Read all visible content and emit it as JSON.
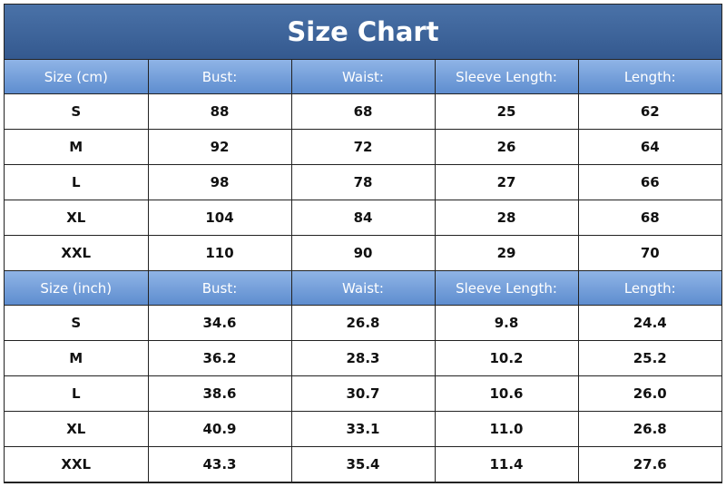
{
  "title": "Size Chart",
  "tables": [
    {
      "header": [
        "Size (cm)",
        "Bust:",
        "Waist:",
        "Sleeve Length:",
        "Length:"
      ],
      "rows": [
        [
          "S",
          "88",
          "68",
          "25",
          "62"
        ],
        [
          "M",
          "92",
          "72",
          "26",
          "64"
        ],
        [
          "L",
          "98",
          "78",
          "27",
          "66"
        ],
        [
          "XL",
          "104",
          "84",
          "28",
          "68"
        ],
        [
          "XXL",
          "110",
          "90",
          "29",
          "70"
        ]
      ]
    },
    {
      "header": [
        "Size (inch)",
        "Bust:",
        "Waist:",
        "Sleeve Length:",
        "Length:"
      ],
      "rows": [
        [
          "S",
          "34.6",
          "26.8",
          "9.8",
          "24.4"
        ],
        [
          "M",
          "36.2",
          "28.3",
          "10.2",
          "25.2"
        ],
        [
          "L",
          "38.6",
          "30.7",
          "10.6",
          "26.0"
        ],
        [
          "XL",
          "40.9",
          "33.1",
          "11.0",
          "26.8"
        ],
        [
          "XXL",
          "43.3",
          "35.4",
          "11.4",
          "27.6"
        ]
      ]
    }
  ]
}
